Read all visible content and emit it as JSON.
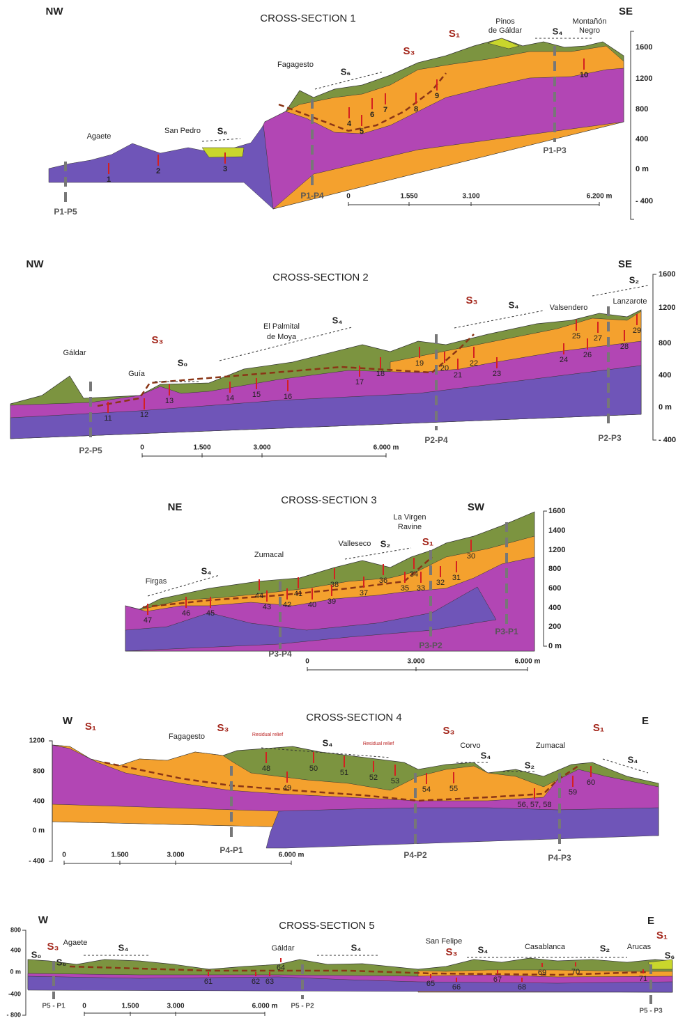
{
  "sections": [
    {
      "title": "CROSS-SECTION 1",
      "orientation": [
        "NW",
        "SE"
      ],
      "places": [
        "Agaete",
        "San Pedro",
        "Fagagesto",
        "Pinos",
        "de Gáldar",
        "Montañón",
        "Negro"
      ],
      "units": [
        "S₆",
        "S₆",
        "S₃",
        "S₁",
        "S₄"
      ],
      "samples": [
        "1",
        "2",
        "3",
        "4",
        "5",
        "6",
        "7",
        "8",
        "9",
        "10"
      ],
      "depth_axis": [
        "1600",
        "1200",
        "800",
        "400",
        "0 m",
        "- 400"
      ],
      "scale_bar": [
        "0",
        "1.550",
        "3.100",
        "6.200 m"
      ],
      "profiles": [
        "P1-P5",
        "P1-P4",
        "P1-P3"
      ]
    },
    {
      "title": "CROSS-SECTION 2",
      "orientation": [
        "NW",
        "SE"
      ],
      "places": [
        "Gáldar",
        "Guía",
        "El Palmital",
        "de Moya",
        "Valsendero",
        "Lanzarote"
      ],
      "units": [
        "S₃",
        "S₀",
        "S₄",
        "S₃",
        "S₄",
        "S₂"
      ],
      "samples": [
        "11",
        "12",
        "13",
        "14",
        "15",
        "16",
        "17",
        "18",
        "19",
        "20",
        "21",
        "22",
        "23",
        "24",
        "25",
        "26",
        "27",
        "28",
        "29"
      ],
      "depth_axis": [
        "1600",
        "1200",
        "800",
        "400",
        "0 m",
        "- 400"
      ],
      "scale_bar": [
        "0",
        "1.500",
        "3.000",
        "6.000 m"
      ],
      "profiles": [
        "P2-P5",
        "P2-P4",
        "P2-P3"
      ]
    },
    {
      "title": "CROSS-SECTION 3",
      "orientation": [
        "NE",
        "SW"
      ],
      "places": [
        "La Virgen",
        "Ravine",
        "Valleseco",
        "Zumacal",
        "Firgas"
      ],
      "units": [
        "S₂",
        "S₁",
        "S₄"
      ],
      "samples": [
        "30",
        "31",
        "32",
        "33",
        "34",
        "35",
        "36",
        "37",
        "38",
        "39",
        "40",
        "41",
        "42",
        "43",
        "44",
        "45",
        "46",
        "47"
      ],
      "depth_axis": [
        "1600",
        "1400",
        "1200",
        "800",
        "600",
        "400",
        "200",
        "0 m"
      ],
      "scale_bar": [
        "0",
        "3.000",
        "6.000 m"
      ],
      "profiles": [
        "P3-P4",
        "P3-P2",
        "P3-P1"
      ]
    },
    {
      "title": "CROSS-SECTION 4",
      "orientation": [
        "W",
        "E"
      ],
      "places": [
        "Fagagesto",
        "Residual relief",
        "Residual relief",
        "Corvo",
        "Zumacal"
      ],
      "units": [
        "S₁",
        "S₃",
        "S₄",
        "S₃",
        "S₄",
        "S₂",
        "S₁",
        "S₄"
      ],
      "samples": [
        "48",
        "49",
        "50",
        "51",
        "52",
        "53",
        "54",
        "55",
        "56, 57, 58",
        "59",
        "60"
      ],
      "depth_axis": [
        "1200",
        "800",
        "400",
        "0 m",
        "- 400"
      ],
      "scale_bar": [
        "0",
        "1.500",
        "3.000",
        "6.000 m"
      ],
      "profiles": [
        "P4-P1",
        "P4-P2",
        "P4-P3"
      ]
    },
    {
      "title": "CROSS-SECTION 5",
      "orientation": [
        "W",
        "E"
      ],
      "places": [
        "Agaete",
        "Gáldar",
        "San Felipe",
        "Casablanca",
        "Arucas"
      ],
      "units": [
        "S₀",
        "S₃",
        "S₆",
        "S₄",
        "S₄",
        "S₃",
        "S₄",
        "S₂",
        "S₁",
        "S₆"
      ],
      "samples": [
        "61",
        "62",
        "63",
        "64",
        "65",
        "66",
        "67",
        "68",
        "69",
        "70",
        "71"
      ],
      "depth_axis": [
        "800",
        "400",
        "0 m",
        "-400",
        "- 800"
      ],
      "scale_bar": [
        "0",
        "1.500",
        "3.000",
        "6.000 m"
      ],
      "profiles": [
        "P5 - P1",
        "P5 - P2",
        "P5 - P3"
      ]
    }
  ]
}
